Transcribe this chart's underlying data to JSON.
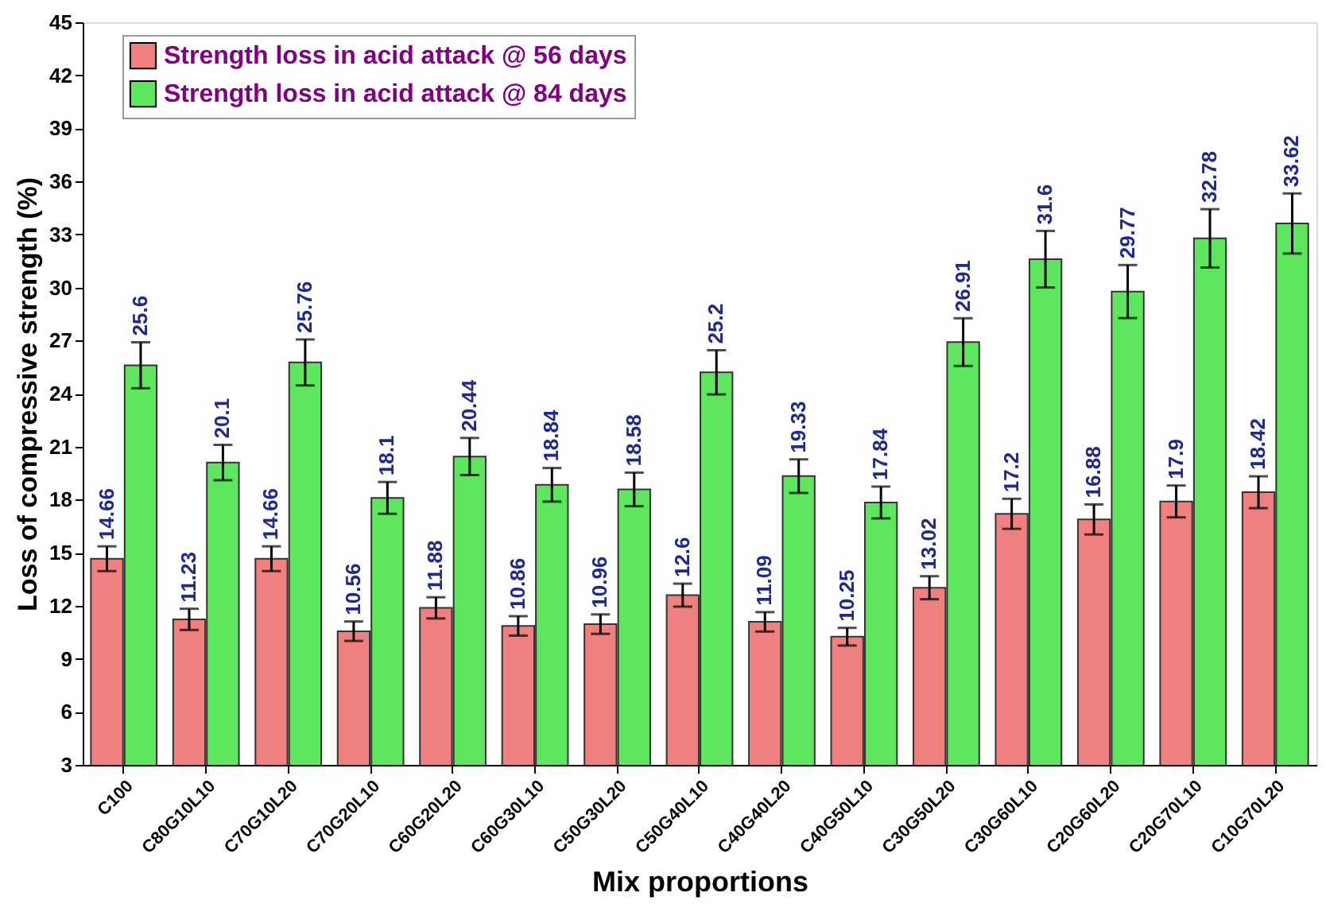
{
  "chart_data": {
    "type": "bar",
    "xlabel": "Mix proportions",
    "ylabel": "Loss of compressive strength (%)",
    "categories": [
      "C100",
      "C80G10L10",
      "C70G10L20",
      "C70G20L10",
      "C60G20L20",
      "C60G30L10",
      "C50G30L20",
      "C50G40L10",
      "C40G40L20",
      "C40G50L10",
      "C30G50L20",
      "C30G60L10",
      "C20G60L20",
      "C20G70L10",
      "C10G70L20"
    ],
    "series": [
      {
        "name": "Strength loss in acid attack @ 56 days",
        "color": "#f08080",
        "values": [
          14.66,
          11.23,
          14.66,
          10.56,
          11.88,
          10.86,
          10.96,
          12.6,
          11.09,
          10.25,
          13.02,
          17.2,
          16.88,
          17.9,
          18.42
        ],
        "errors": [
          0.7,
          0.6,
          0.7,
          0.55,
          0.6,
          0.55,
          0.55,
          0.65,
          0.55,
          0.5,
          0.65,
          0.85,
          0.85,
          0.9,
          0.9
        ]
      },
      {
        "name": "Strength loss in acid attack @ 84 days",
        "color": "#5ee65e",
        "values": [
          25.6,
          20.1,
          25.76,
          18.1,
          20.44,
          18.84,
          18.58,
          25.2,
          19.33,
          17.84,
          26.91,
          31.6,
          29.77,
          32.78,
          33.62
        ],
        "errors": [
          1.3,
          1.0,
          1.3,
          0.9,
          1.05,
          0.95,
          0.95,
          1.25,
          0.95,
          0.9,
          1.35,
          1.6,
          1.5,
          1.65,
          1.7
        ]
      }
    ],
    "ylim": [
      3,
      45
    ],
    "yticks": [
      3,
      6,
      9,
      12,
      15,
      18,
      21,
      24,
      27,
      30,
      33,
      36,
      39,
      42,
      45
    ],
    "data_labels": true,
    "legend": "top left",
    "grid": false
  }
}
